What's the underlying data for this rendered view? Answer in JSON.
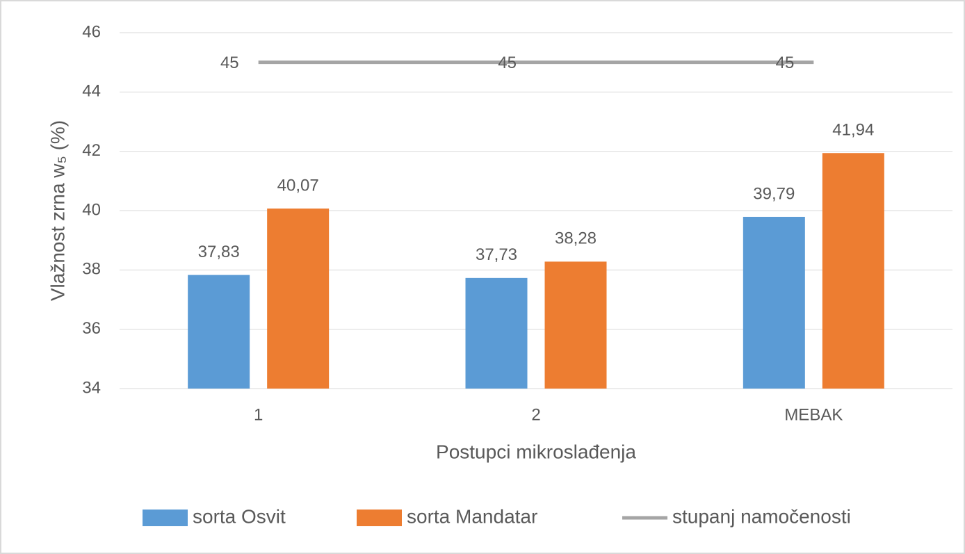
{
  "chart_data": {
    "type": "bar",
    "x_label": "Postupci mikroslađenja",
    "y_label": "Vlažnost zrna w₅ (%)",
    "categories": [
      "1",
      "2",
      "MEBAK"
    ],
    "series": [
      {
        "name": "sorta Osvit",
        "color": "#5b9bd5",
        "values": [
          37.83,
          37.73,
          39.79
        ],
        "value_labels": [
          "37,83",
          "37,73",
          "39,79"
        ]
      },
      {
        "name": "sorta Mandatar",
        "color": "#ed7d31",
        "values": [
          40.07,
          38.28,
          41.94
        ],
        "value_labels": [
          "40,07",
          "38,28",
          "41,94"
        ]
      },
      {
        "name": "stupanj namočenosti",
        "type": "line",
        "color": "#a5a5a5",
        "values": [
          45,
          45,
          45
        ]
      }
    ],
    "ylim": [
      34,
      46
    ],
    "yticks": [
      34,
      36,
      38,
      40,
      42,
      44,
      46
    ],
    "grid": true,
    "legend": "bottom"
  }
}
